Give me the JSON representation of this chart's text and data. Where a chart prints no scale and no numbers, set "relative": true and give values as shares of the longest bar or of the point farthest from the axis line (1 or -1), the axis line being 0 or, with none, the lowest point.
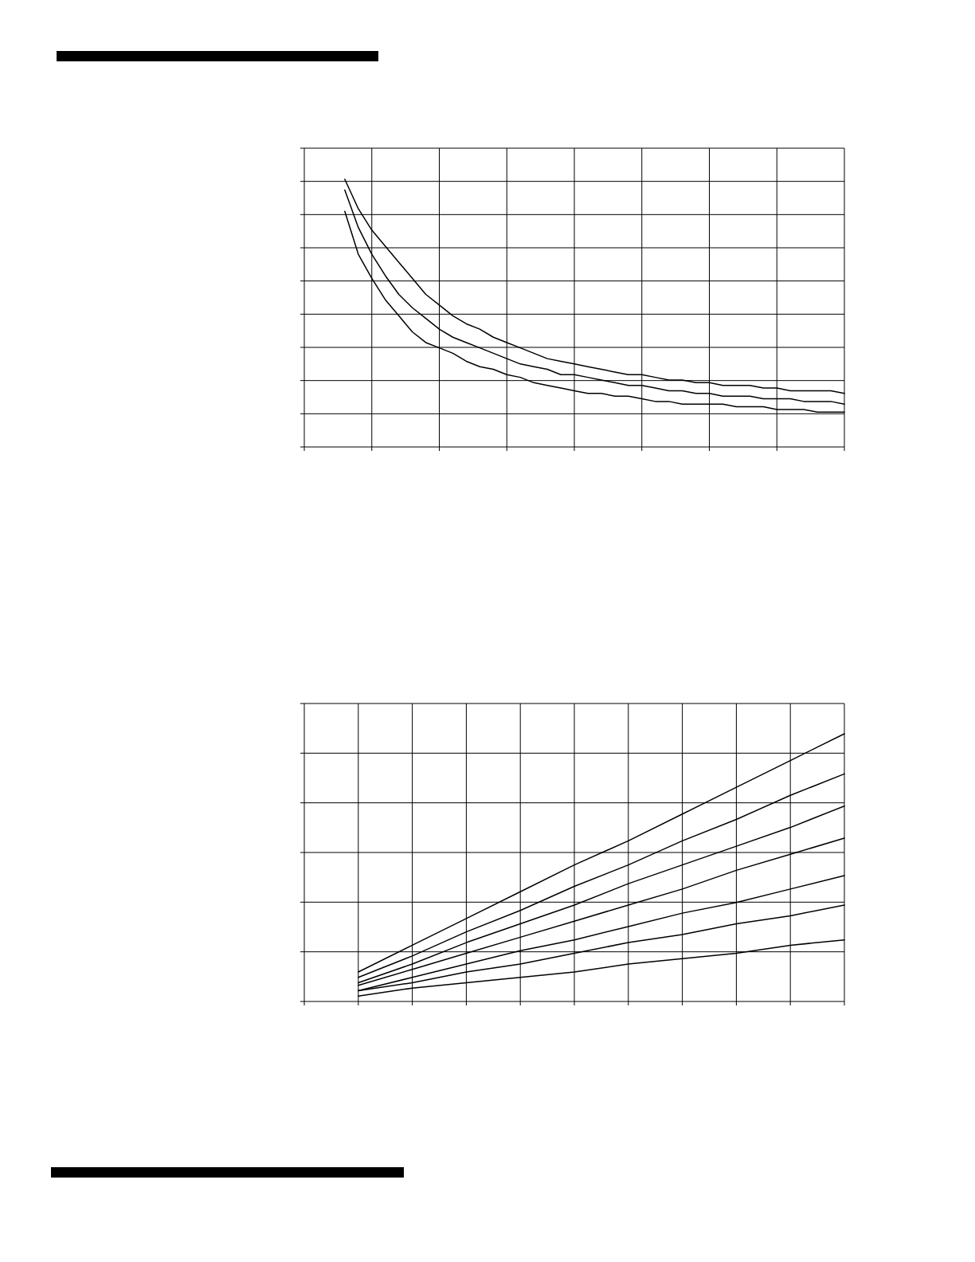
{
  "chart_data": [
    {
      "type": "line",
      "relative": true,
      "grid": true,
      "categories": [
        null,
        null,
        null,
        null,
        null,
        null,
        null,
        null,
        null,
        null,
        null,
        null,
        null,
        null,
        null,
        null,
        null,
        null,
        null,
        null,
        null,
        null,
        null,
        null,
        null,
        null,
        null,
        null,
        null,
        null,
        null,
        null,
        null,
        null,
        null,
        null,
        null,
        null,
        null,
        null,
        null
      ],
      "series": [
        {
          "color": "#000000",
          "values": [
            null,
            null,
            null,
            1,
            0.89,
            0.81,
            0.75,
            0.69,
            0.63,
            0.57,
            0.53,
            0.49,
            0.46,
            0.44,
            0.41,
            0.39,
            0.37,
            0.35,
            0.33,
            0.32,
            0.31,
            0.3,
            0.29,
            0.28,
            0.27,
            0.27,
            0.26,
            0.25,
            0.25,
            0.24,
            0.24,
            0.23,
            0.23,
            0.23,
            0.22,
            0.22,
            0.21,
            0.21,
            0.21,
            0.21,
            0.2
          ]
        },
        {
          "color": "#000000",
          "values": [
            null,
            null,
            null,
            0.96,
            0.82,
            0.72,
            0.64,
            0.57,
            0.52,
            0.48,
            0.44,
            0.41,
            0.39,
            0.37,
            0.35,
            0.33,
            0.31,
            0.3,
            0.29,
            0.27,
            0.27,
            0.26,
            0.25,
            0.24,
            0.23,
            0.23,
            0.22,
            0.21,
            0.21,
            0.2,
            0.2,
            0.19,
            0.19,
            0.19,
            0.18,
            0.18,
            0.18,
            0.17,
            0.17,
            0.17,
            0.16
          ]
        },
        {
          "color": "#000000",
          "values": [
            null,
            null,
            null,
            0.88,
            0.72,
            0.63,
            0.55,
            0.49,
            0.43,
            0.39,
            0.37,
            0.35,
            0.32,
            0.3,
            0.29,
            0.27,
            0.26,
            0.24,
            0.23,
            0.22,
            0.21,
            0.2,
            0.2,
            0.19,
            0.19,
            0.18,
            0.17,
            0.17,
            0.16,
            0.16,
            0.16,
            0.16,
            0.15,
            0.15,
            0.15,
            0.14,
            0.14,
            0.14,
            0.13,
            0.13,
            0.13
          ]
        }
      ]
    },
    {
      "type": "line",
      "relative": true,
      "grid": true,
      "categories": [
        null,
        null,
        null,
        null,
        null,
        null,
        null,
        null,
        null,
        null,
        null
      ],
      "series": [
        {
          "color": "#000000",
          "values": [
            null,
            0.11,
            0.21,
            0.31,
            0.41,
            0.51,
            0.6,
            0.7,
            0.8,
            0.9,
            1
          ]
        },
        {
          "color": "#000000",
          "values": [
            null,
            0.09,
            0.17,
            0.26,
            0.34,
            0.43,
            0.51,
            0.6,
            0.68,
            0.77,
            0.85
          ]
        },
        {
          "color": "#000000",
          "values": [
            null,
            0.07,
            0.14,
            0.22,
            0.29,
            0.36,
            0.44,
            0.51,
            0.58,
            0.65,
            0.73
          ]
        },
        {
          "color": "#000000",
          "values": [
            null,
            0.06,
            0.12,
            0.18,
            0.24,
            0.3,
            0.36,
            0.42,
            0.49,
            0.55,
            0.61
          ]
        },
        {
          "color": "#000000",
          "values": [
            null,
            0.04,
            0.09,
            0.14,
            0.19,
            0.23,
            0.28,
            0.33,
            0.37,
            0.42,
            0.47
          ]
        },
        {
          "color": "#000000",
          "values": [
            null,
            0.04,
            0.07,
            0.11,
            0.14,
            0.18,
            0.22,
            0.25,
            0.29,
            0.32,
            0.36
          ]
        },
        {
          "color": "#000000",
          "values": [
            null,
            0.02,
            0.05,
            0.07,
            0.09,
            0.11,
            0.14,
            0.16,
            0.18,
            0.21,
            0.23
          ]
        }
      ]
    }
  ]
}
